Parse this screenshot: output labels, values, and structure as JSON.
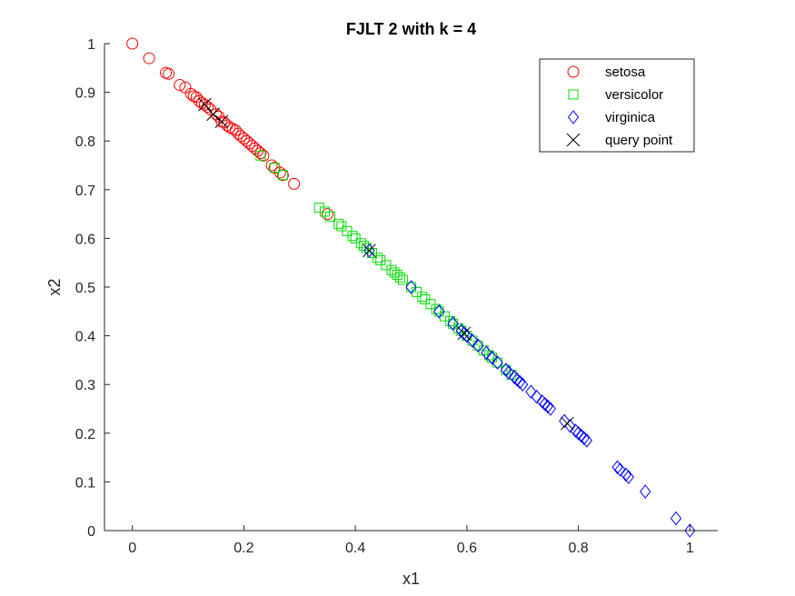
{
  "chart_data": {
    "type": "scatter",
    "title": "FJLT 2 with k = 4",
    "xlabel": "x1",
    "ylabel": "x2",
    "xlim": [
      -0.05,
      1.05
    ],
    "ylim": [
      0,
      1
    ],
    "xticks": [
      0,
      0.2,
      0.4,
      0.6,
      0.8,
      1
    ],
    "xtick_labels": [
      "0",
      "0.2",
      "0.4",
      "0.6",
      "0.8",
      "1"
    ],
    "yticks": [
      0,
      0.1,
      0.2,
      0.3,
      0.4,
      0.5,
      0.6,
      0.7,
      0.8,
      0.9,
      1
    ],
    "ytick_labels": [
      "0",
      "0.1",
      "0.2",
      "0.3",
      "0.4",
      "0.5",
      "0.6",
      "0.7",
      "0.8",
      "0.9",
      "1"
    ],
    "grid": false,
    "legend_position": "top-right",
    "series": [
      {
        "name": "setosa",
        "marker": "circle",
        "color": "#ff0000",
        "points": [
          [
            0,
            1
          ],
          [
            0.03,
            0.97
          ],
          [
            0.06,
            0.94
          ],
          [
            0.065,
            0.938
          ],
          [
            0.085,
            0.915
          ],
          [
            0.095,
            0.91
          ],
          [
            0.105,
            0.897
          ],
          [
            0.11,
            0.892
          ],
          [
            0.115,
            0.89
          ],
          [
            0.12,
            0.882
          ],
          [
            0.125,
            0.878
          ],
          [
            0.13,
            0.874
          ],
          [
            0.135,
            0.87
          ],
          [
            0.14,
            0.865
          ],
          [
            0.15,
            0.855
          ],
          [
            0.155,
            0.85
          ],
          [
            0.16,
            0.84
          ],
          [
            0.165,
            0.838
          ],
          [
            0.17,
            0.832
          ],
          [
            0.175,
            0.828
          ],
          [
            0.18,
            0.825
          ],
          [
            0.185,
            0.822
          ],
          [
            0.19,
            0.815
          ],
          [
            0.195,
            0.81
          ],
          [
            0.2,
            0.805
          ],
          [
            0.205,
            0.8
          ],
          [
            0.21,
            0.795
          ],
          [
            0.215,
            0.79
          ],
          [
            0.22,
            0.785
          ],
          [
            0.225,
            0.78
          ],
          [
            0.23,
            0.775
          ],
          [
            0.235,
            0.77
          ],
          [
            0.25,
            0.75
          ],
          [
            0.255,
            0.745
          ],
          [
            0.265,
            0.735
          ],
          [
            0.27,
            0.73
          ],
          [
            0.29,
            0.712
          ],
          [
            0.35,
            0.65
          ]
        ]
      },
      {
        "name": "versicolor",
        "marker": "square",
        "color": "#00dd00",
        "points": [
          [
            0.23,
            0.77
          ],
          [
            0.255,
            0.745
          ],
          [
            0.27,
            0.73
          ],
          [
            0.335,
            0.663
          ],
          [
            0.345,
            0.655
          ],
          [
            0.355,
            0.645
          ],
          [
            0.37,
            0.63
          ],
          [
            0.375,
            0.625
          ],
          [
            0.385,
            0.615
          ],
          [
            0.395,
            0.605
          ],
          [
            0.4,
            0.6
          ],
          [
            0.41,
            0.59
          ],
          [
            0.415,
            0.585
          ],
          [
            0.42,
            0.58
          ],
          [
            0.43,
            0.57
          ],
          [
            0.44,
            0.56
          ],
          [
            0.445,
            0.555
          ],
          [
            0.455,
            0.545
          ],
          [
            0.465,
            0.535
          ],
          [
            0.47,
            0.53
          ],
          [
            0.475,
            0.525
          ],
          [
            0.48,
            0.52
          ],
          [
            0.485,
            0.515
          ],
          [
            0.5,
            0.5
          ],
          [
            0.51,
            0.49
          ],
          [
            0.52,
            0.48
          ],
          [
            0.525,
            0.475
          ],
          [
            0.535,
            0.465
          ],
          [
            0.545,
            0.455
          ],
          [
            0.55,
            0.45
          ],
          [
            0.56,
            0.44
          ],
          [
            0.57,
            0.43
          ],
          [
            0.575,
            0.425
          ],
          [
            0.585,
            0.415
          ],
          [
            0.59,
            0.41
          ],
          [
            0.6,
            0.4
          ],
          [
            0.61,
            0.39
          ],
          [
            0.62,
            0.38
          ],
          [
            0.63,
            0.37
          ],
          [
            0.64,
            0.36
          ],
          [
            0.645,
            0.355
          ],
          [
            0.655,
            0.345
          ],
          [
            0.67,
            0.33
          ],
          [
            0.68,
            0.32
          ]
        ]
      },
      {
        "name": "virginica",
        "marker": "diamond",
        "color": "#0000ff",
        "points": [
          [
            0.425,
            0.575
          ],
          [
            0.5,
            0.5
          ],
          [
            0.55,
            0.45
          ],
          [
            0.575,
            0.425
          ],
          [
            0.59,
            0.41
          ],
          [
            0.595,
            0.405
          ],
          [
            0.6,
            0.4
          ],
          [
            0.61,
            0.39
          ],
          [
            0.62,
            0.38
          ],
          [
            0.635,
            0.365
          ],
          [
            0.645,
            0.355
          ],
          [
            0.655,
            0.345
          ],
          [
            0.67,
            0.33
          ],
          [
            0.675,
            0.325
          ],
          [
            0.685,
            0.315
          ],
          [
            0.69,
            0.31
          ],
          [
            0.695,
            0.305
          ],
          [
            0.7,
            0.3
          ],
          [
            0.715,
            0.285
          ],
          [
            0.725,
            0.275
          ],
          [
            0.735,
            0.265
          ],
          [
            0.74,
            0.26
          ],
          [
            0.745,
            0.255
          ],
          [
            0.75,
            0.25
          ],
          [
            0.775,
            0.225
          ],
          [
            0.785,
            0.215
          ],
          [
            0.795,
            0.205
          ],
          [
            0.8,
            0.2
          ],
          [
            0.805,
            0.195
          ],
          [
            0.81,
            0.19
          ],
          [
            0.815,
            0.185
          ],
          [
            0.87,
            0.13
          ],
          [
            0.875,
            0.125
          ],
          [
            0.885,
            0.115
          ],
          [
            0.89,
            0.11
          ],
          [
            0.92,
            0.08
          ],
          [
            0.975,
            0.025
          ],
          [
            1,
            0
          ]
        ]
      },
      {
        "name": "query point",
        "marker": "x",
        "color": "#000000",
        "points": [
          [
            0.13,
            0.875
          ],
          [
            0.145,
            0.855
          ],
          [
            0.16,
            0.84
          ],
          [
            0.425,
            0.575
          ],
          [
            0.595,
            0.405
          ],
          [
            0.78,
            0.22
          ]
        ]
      }
    ]
  }
}
